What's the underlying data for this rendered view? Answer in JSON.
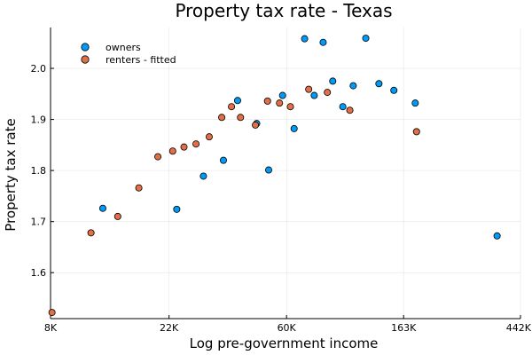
{
  "chart_data": {
    "type": "scatter",
    "title": "Property tax rate - Texas",
    "xlabel": "Log pre-government income",
    "ylabel": "Property tax rate",
    "xscale": "log",
    "xlim": [
      8000,
      442000
    ],
    "ylim": [
      1.51,
      2.08
    ],
    "x_ticks": [
      {
        "value": 8000,
        "label": "8K"
      },
      {
        "value": 22000,
        "label": "22K"
      },
      {
        "value": 60000,
        "label": "60K"
      },
      {
        "value": 163000,
        "label": "163K"
      },
      {
        "value": 442000,
        "label": "442K"
      }
    ],
    "y_ticks": [
      {
        "value": 1.6,
        "label": "1.6"
      },
      {
        "value": 1.7,
        "label": "1.7"
      },
      {
        "value": 1.8,
        "label": "1.8"
      },
      {
        "value": 1.9,
        "label": "1.9"
      },
      {
        "value": 2.0,
        "label": "2.0"
      }
    ],
    "grid": true,
    "legend_position": "top-left",
    "series": [
      {
        "name": "owners",
        "color": "#009AF9",
        "points": [
          {
            "x": 12500,
            "y": 1.726
          },
          {
            "x": 23500,
            "y": 1.724
          },
          {
            "x": 29500,
            "y": 1.789
          },
          {
            "x": 35000,
            "y": 1.82
          },
          {
            "x": 39500,
            "y": 1.937
          },
          {
            "x": 46500,
            "y": 1.892
          },
          {
            "x": 51500,
            "y": 1.801
          },
          {
            "x": 58000,
            "y": 1.947
          },
          {
            "x": 64000,
            "y": 1.882
          },
          {
            "x": 70000,
            "y": 2.058
          },
          {
            "x": 76000,
            "y": 1.947
          },
          {
            "x": 82000,
            "y": 2.051
          },
          {
            "x": 89000,
            "y": 1.975
          },
          {
            "x": 97000,
            "y": 1.925
          },
          {
            "x": 106000,
            "y": 1.966
          },
          {
            "x": 118000,
            "y": 2.059
          },
          {
            "x": 132000,
            "y": 1.97
          },
          {
            "x": 150000,
            "y": 1.957
          },
          {
            "x": 180000,
            "y": 1.932
          },
          {
            "x": 362000,
            "y": 1.672
          }
        ]
      },
      {
        "name": "renters - fitted",
        "color": "#E26F46",
        "points": [
          {
            "x": 8100,
            "y": 1.522
          },
          {
            "x": 11300,
            "y": 1.678
          },
          {
            "x": 14200,
            "y": 1.71
          },
          {
            "x": 17000,
            "y": 1.766
          },
          {
            "x": 20000,
            "y": 1.827
          },
          {
            "x": 22700,
            "y": 1.838
          },
          {
            "x": 25000,
            "y": 1.846
          },
          {
            "x": 27700,
            "y": 1.852
          },
          {
            "x": 31000,
            "y": 1.866
          },
          {
            "x": 34500,
            "y": 1.904
          },
          {
            "x": 37500,
            "y": 1.925
          },
          {
            "x": 40500,
            "y": 1.904
          },
          {
            "x": 46000,
            "y": 1.889
          },
          {
            "x": 51000,
            "y": 1.936
          },
          {
            "x": 56500,
            "y": 1.932
          },
          {
            "x": 62000,
            "y": 1.925
          },
          {
            "x": 72500,
            "y": 1.959
          },
          {
            "x": 85000,
            "y": 1.953
          },
          {
            "x": 103000,
            "y": 1.918
          },
          {
            "x": 182000,
            "y": 1.876
          }
        ]
      }
    ]
  }
}
